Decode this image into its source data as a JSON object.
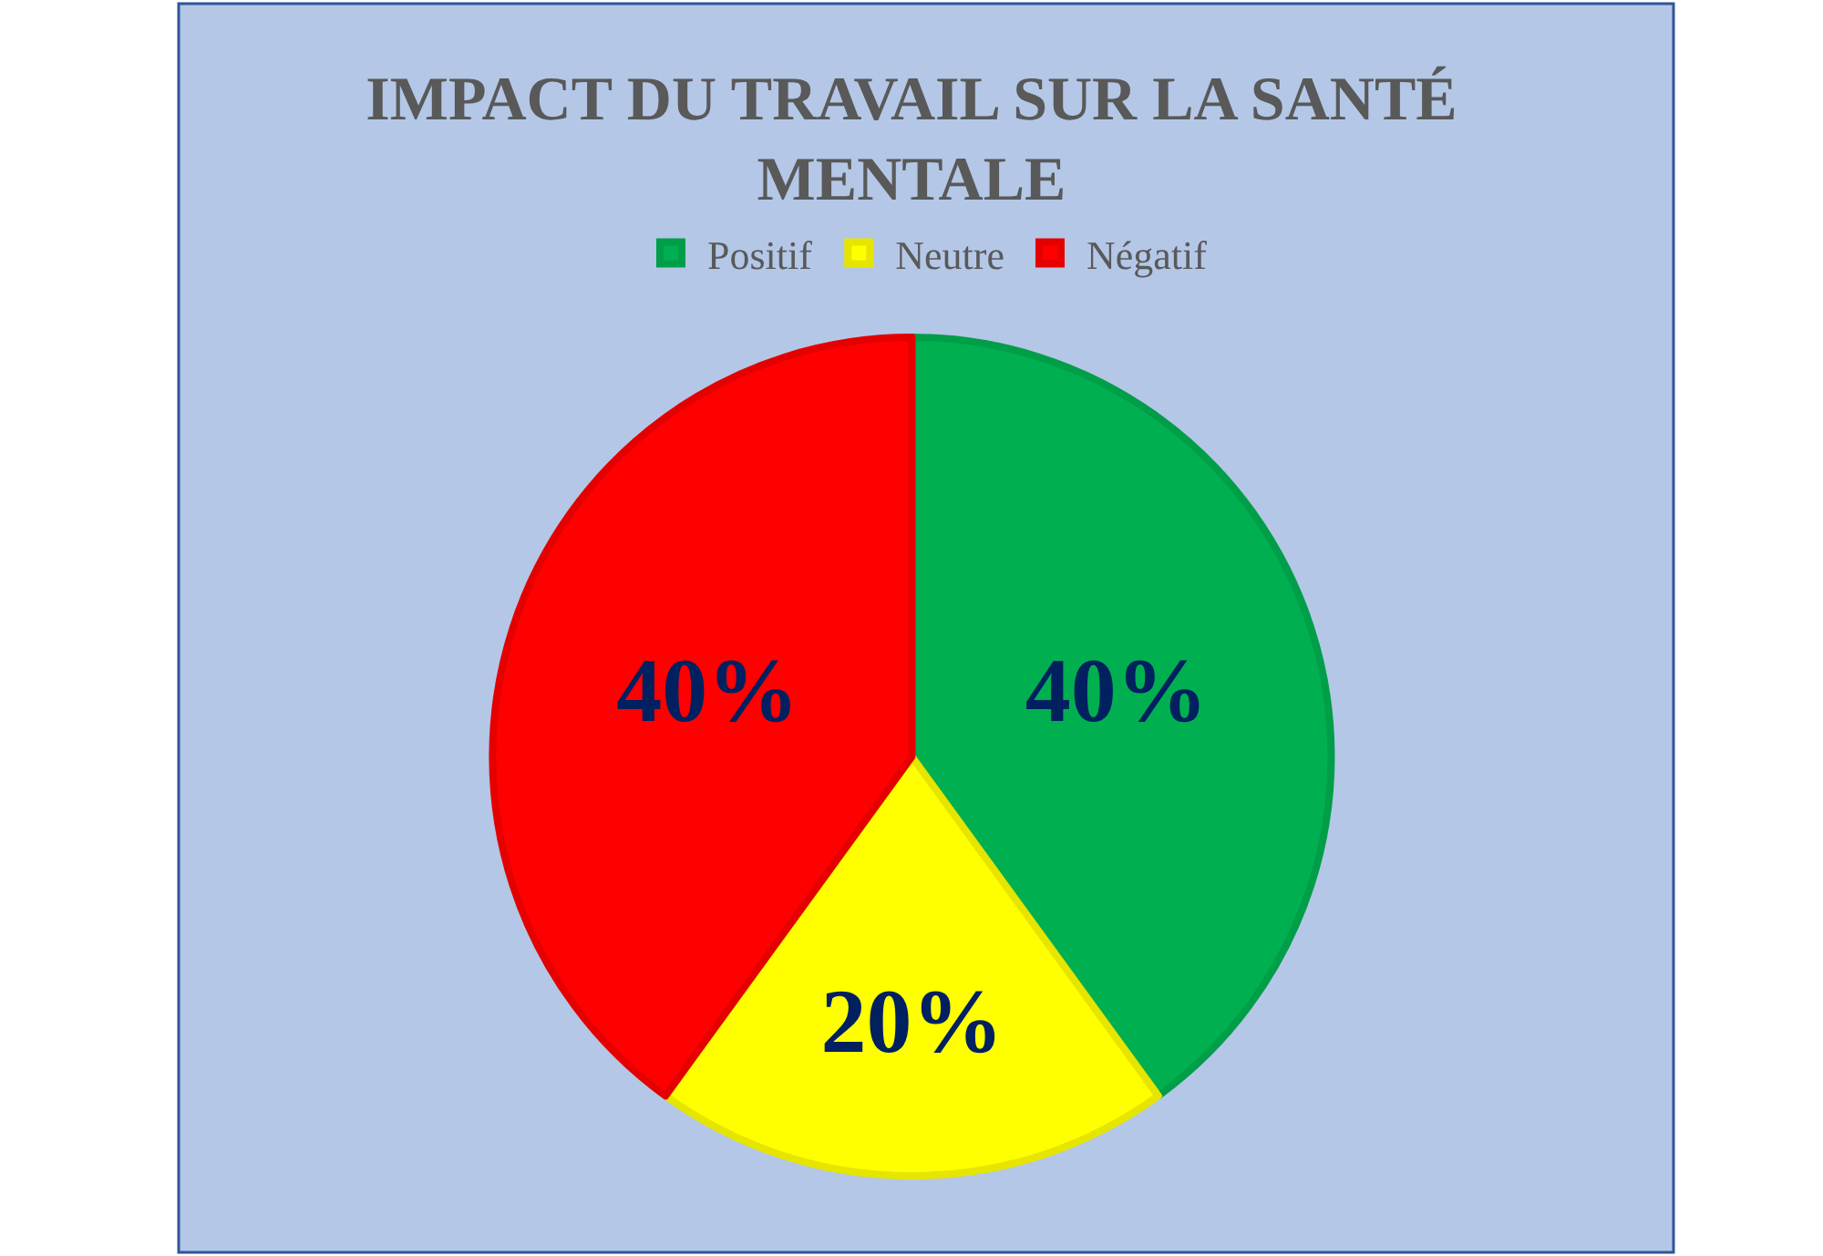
{
  "chart_data": {
    "type": "pie",
    "title": "IMPACT DU TRAVAIL SUR LA SANTÉ MENTALE",
    "categories": [
      "Positif",
      "Neutre",
      "Négatif"
    ],
    "values": [
      40,
      20,
      40
    ],
    "colors": [
      "#00b050",
      "#ffff00",
      "#ff0000"
    ],
    "value_labels": [
      "40%",
      "20%",
      "40%"
    ],
    "legend": "top"
  }
}
